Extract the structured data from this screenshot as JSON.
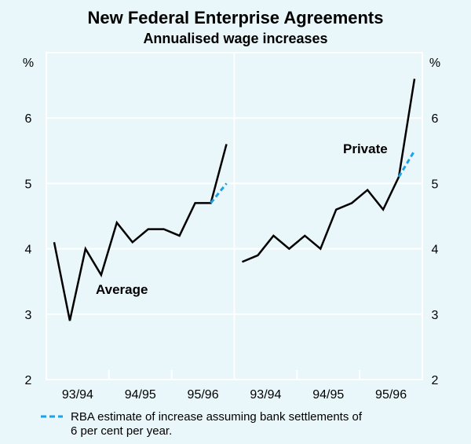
{
  "chart_data": {
    "type": "line",
    "title": "New Federal Enterprise Agreements",
    "subtitle": "Annualised wage increases",
    "ylabel": "%",
    "ylim": [
      2,
      7
    ],
    "yticks": [
      "2",
      "3",
      "4",
      "5",
      "6"
    ],
    "grid": true,
    "colors": {
      "actual": "#000000",
      "estimate": "#1aa3e8",
      "grid": "#ffffff",
      "background": "#e9f6fa"
    },
    "panels": [
      {
        "label": "Average",
        "categories": [
          "93/94",
          "94/95",
          "95/96"
        ],
        "values": [
          4.1,
          2.9,
          4.0,
          3.6,
          4.4,
          4.1,
          4.3,
          4.3,
          4.2,
          4.7,
          4.7,
          5.6
        ],
        "estimate": [
          4.7,
          5.0
        ]
      },
      {
        "label": "Private",
        "categories": [
          "93/94",
          "94/95",
          "95/96"
        ],
        "values": [
          3.8,
          3.9,
          4.2,
          4.0,
          4.2,
          4.0,
          4.6,
          4.7,
          4.9,
          4.6,
          5.1,
          6.6
        ],
        "estimate": [
          5.1,
          5.5
        ]
      }
    ],
    "legend": {
      "line1": "RBA estimate of increase assuming bank settlements of",
      "line2": "6 per cent per year.",
      "placement": "bottom"
    }
  }
}
